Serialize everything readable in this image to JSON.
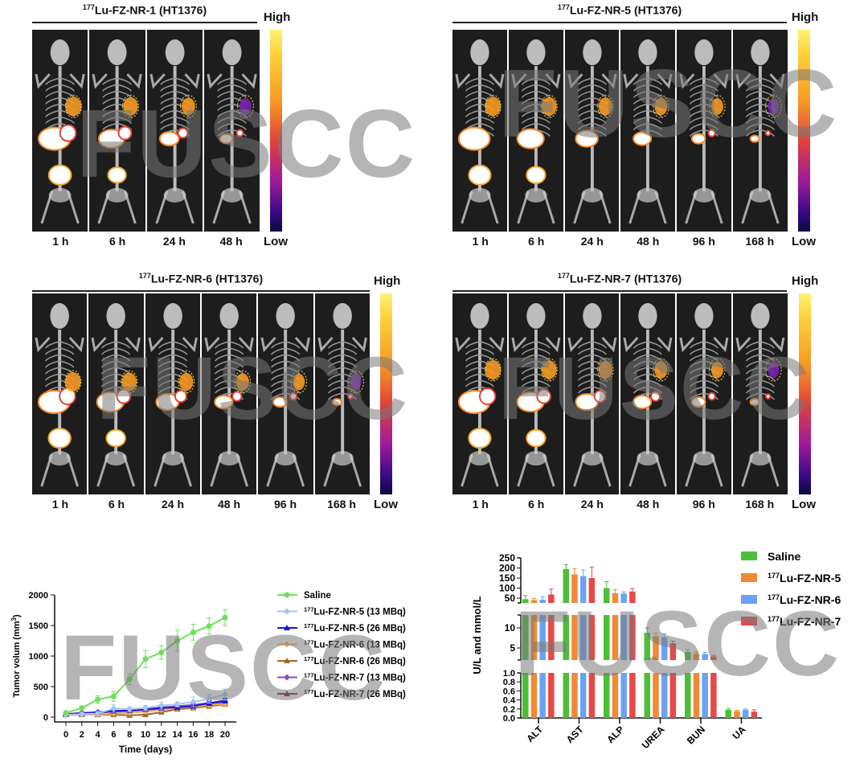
{
  "watermark": "FUSCC",
  "colorbar": {
    "high": "High",
    "low": "Low"
  },
  "imaging_panels": [
    {
      "iso": "177",
      "title": "Lu-FZ-NR-1 (HT1376)",
      "times": [
        "1 h",
        "6 h",
        "24 h",
        "48 h"
      ]
    },
    {
      "iso": "177",
      "title": "Lu-FZ-NR-5 (HT1376)",
      "times": [
        "1 h",
        "6 h",
        "24 h",
        "48 h",
        "96 h",
        "168 h"
      ]
    },
    {
      "iso": "177",
      "title": "Lu-FZ-NR-6 (HT1376)",
      "times": [
        "1 h",
        "6 h",
        "24 h",
        "48 h",
        "96 h",
        "168 h"
      ]
    },
    {
      "iso": "177",
      "title": "Lu-FZ-NR-7 (HT1376)",
      "times": [
        "1 h",
        "6 h",
        "24 h",
        "48 h",
        "96 h",
        "168 h"
      ]
    }
  ],
  "chart_data": [
    {
      "type": "line",
      "xlabel": "Time (days)",
      "ylabel": "Tumor volum (mm",
      "ylabel_sup": "3",
      "ylabel_end": ")",
      "x": [
        0,
        2,
        4,
        6,
        8,
        10,
        12,
        14,
        16,
        18,
        20
      ],
      "xticks": [
        "0",
        "2",
        "4",
        "6",
        "8",
        "10",
        "12",
        "14",
        "16",
        "18",
        "20"
      ],
      "yticks": [
        "0",
        "500",
        "1000",
        "1500",
        "2000"
      ],
      "xlim": [
        0,
        20
      ],
      "ylim": [
        0,
        2000
      ],
      "legend_position": "right",
      "series": [
        {
          "name": "Saline",
          "iso": "",
          "color": "#6ee05a",
          "marker": "circle",
          "values": [
            70,
            150,
            290,
            340,
            620,
            950,
            1060,
            1250,
            1390,
            1490,
            1630
          ],
          "err": [
            20,
            30,
            60,
            80,
            90,
            140,
            110,
            170,
            130,
            130,
            130
          ]
        },
        {
          "name": "Lu-FZ-NR-5 (13 MBq)",
          "iso": "177",
          "color": "#a3c6f7",
          "marker": "diamond",
          "values": [
            40,
            50,
            60,
            140,
            130,
            150,
            190,
            210,
            250,
            300,
            370
          ],
          "err": [
            15,
            20,
            30,
            60,
            40,
            40,
            60,
            40,
            80,
            70,
            90
          ]
        },
        {
          "name": "Lu-FZ-NR-5 (26 MBq)",
          "iso": "177",
          "color": "#1515d6",
          "marker": "triangle",
          "values": [
            50,
            60,
            80,
            100,
            110,
            130,
            150,
            160,
            180,
            230,
            270
          ],
          "err": [
            15,
            15,
            20,
            30,
            30,
            30,
            30,
            30,
            30,
            40,
            40
          ]
        },
        {
          "name": "Lu-FZ-NR-6 (13 MBq)",
          "iso": "177",
          "color": "#f5a860",
          "marker": "diamond",
          "values": [
            30,
            40,
            40,
            60,
            70,
            90,
            120,
            150,
            170,
            200,
            220
          ],
          "err": [
            10,
            10,
            15,
            20,
            20,
            20,
            25,
            25,
            30,
            30,
            30
          ]
        },
        {
          "name": "Lu-FZ-NR-6 (26 MBq)",
          "iso": "177",
          "color": "#9a6a2a",
          "marker": "triangle",
          "values": [
            40,
            40,
            40,
            40,
            30,
            40,
            80,
            130,
            150,
            180,
            210
          ],
          "err": [
            10,
            10,
            10,
            10,
            10,
            10,
            20,
            20,
            20,
            30,
            30
          ]
        },
        {
          "name": "Lu-FZ-NR-7 (13 MBq)",
          "iso": "177",
          "color": "#8a4fc0",
          "marker": "diamond",
          "values": [
            50,
            70,
            80,
            90,
            100,
            120,
            160,
            180,
            200,
            230,
            260
          ],
          "err": [
            15,
            15,
            20,
            20,
            20,
            25,
            30,
            30,
            30,
            40,
            40
          ]
        },
        {
          "name": "Lu-FZ-NR-7 (26 MBq)",
          "iso": "177",
          "color": "#6a1a4a",
          "marker": "triangle",
          "values": [
            50,
            70,
            70,
            90,
            100,
            120,
            140,
            160,
            180,
            220,
            240
          ],
          "err": [
            15,
            15,
            20,
            20,
            20,
            25,
            25,
            30,
            30,
            30,
            40
          ]
        }
      ]
    },
    {
      "type": "bar",
      "ylabel": "U/L and mmol/L",
      "categories": [
        "ALT",
        "AST",
        "ALP",
        "UREA",
        "BUN",
        "UA"
      ],
      "axis_segments": [
        {
          "range": [
            0,
            1.0
          ],
          "ticks": [
            "0.0",
            "0.2",
            "0.4",
            "0.6",
            "0.8",
            "1.0"
          ]
        },
        {
          "range": [
            2,
            13.2
          ],
          "ticks": [
            "5",
            "10"
          ]
        },
        {
          "range": [
            26,
            250
          ],
          "ticks": [
            "50",
            "100",
            "150",
            "200",
            "250"
          ]
        }
      ],
      "legend_position": "top-right",
      "series": [
        {
          "name": "Saline",
          "iso": "",
          "color": "#4cbf38",
          "values": [
            45,
            195,
            100,
            8.8,
            4.0,
            0.18
          ],
          "err": [
            18,
            22,
            32,
            1.2,
            0.6,
            0.03
          ]
        },
        {
          "name": "Lu-FZ-NR-5",
          "iso": "177",
          "color": "#f08a34",
          "values": [
            40,
            168,
            75,
            7.9,
            3.6,
            0.15
          ],
          "err": [
            8,
            28,
            18,
            0.8,
            0.4,
            0.02
          ]
        },
        {
          "name": "Lu-FZ-NR-6",
          "iso": "177",
          "color": "#6aa2f5",
          "values": [
            42,
            160,
            73,
            7.6,
            3.5,
            0.18
          ],
          "err": [
            15,
            30,
            8,
            0.9,
            0.4,
            0.02
          ]
        },
        {
          "name": "Lu-FZ-NR-7",
          "iso": "177",
          "color": "#e84848",
          "values": [
            68,
            150,
            83,
            6.2,
            2.9,
            0.14
          ],
          "err": [
            27,
            55,
            15,
            0.5,
            0.3,
            0.04
          ]
        }
      ]
    }
  ]
}
